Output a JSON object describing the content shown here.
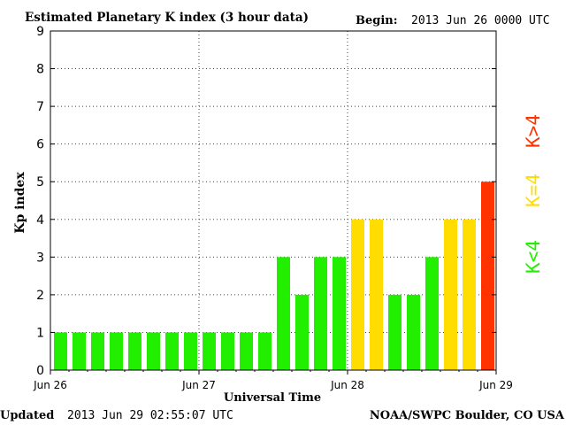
{
  "header": {
    "title": "Estimated Planetary K index (3 hour data)",
    "begin_label": "Begin:",
    "begin_value": "2013 Jun 26 0000 UTC"
  },
  "footer": {
    "updated_label": "Updated",
    "updated_value": "2013 Jun 29 02:55:07 UTC",
    "source": "NOAA/SWPC Boulder, CO USA"
  },
  "legend": {
    "low": "K<4",
    "mid": "K=4",
    "high": "K>4"
  },
  "colors": {
    "low": "#22ee00",
    "mid": "#ffdd00",
    "high": "#ff3300"
  },
  "chart_data": {
    "type": "bar",
    "title": "Estimated Planetary K index (3 hour data)",
    "xlabel": "Universal Time",
    "ylabel": "Kp index",
    "ylim": [
      0,
      9
    ],
    "yticks": [
      0,
      1,
      2,
      3,
      4,
      5,
      6,
      7,
      8,
      9
    ],
    "xticks": [
      "Jun 26",
      "Jun 27",
      "Jun 28",
      "Jun 29"
    ],
    "bars_per_day": 8,
    "values": [
      1,
      1,
      1,
      1,
      1,
      1,
      1,
      1,
      1,
      1,
      1,
      1,
      3,
      2,
      3,
      3,
      4,
      4,
      2,
      2,
      3,
      4,
      4,
      5
    ],
    "grid": true
  }
}
